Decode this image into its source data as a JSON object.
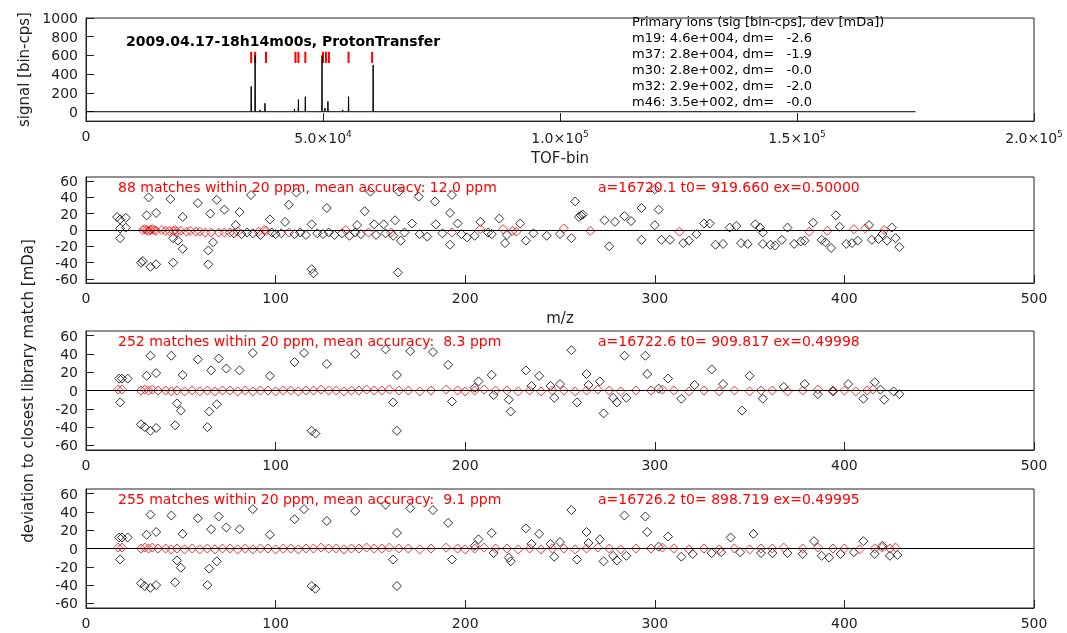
{
  "chart_data": [
    {
      "type": "line",
      "xlabel": "TOF-bin",
      "ylabel": "signal [bin-cps]",
      "xlim": [
        0,
        200000
      ],
      "xticks": [
        0,
        {
          "value": 50000,
          "label": "5.0×10$^{4}$"
        },
        {
          "value": 100000,
          "label": "1.0×10$^{5}$"
        },
        {
          "value": 150000,
          "label": "1.5×10$^{5}$"
        },
        {
          "value": 200000,
          "label": "2.0×10$^{5}$"
        }
      ],
      "ylim": [
        -100,
        1000
      ],
      "yticks": [
        0,
        200,
        400,
        600,
        800,
        1000
      ],
      "grid": false,
      "marker": "none",
      "annotations": [
        "2009.04.17-18h14m00s, ProtonTransfer",
        "Primary ions (sig [bin-cps], dev [mDa])",
        "m19: 4.6e+004, dm=   -2.6",
        "m37: 2.8e+004, dm=   -1.9",
        "m30: 2.8e+002, dm=   -0.0",
        "m32: 2.9e+002, dm=   -2.0",
        "m46: 3.5e+002, dm=   -0.0"
      ],
      "series": [
        {
          "color": "#000000",
          "x": [
            0,
            34800,
            34850,
            34900,
            35630,
            35680,
            35730,
            36670,
            36720,
            36770,
            37710,
            37760,
            37810,
            43930,
            43980,
            44030,
            44760,
            44810,
            44860,
            46220,
            46270,
            46320,
            49740,
            49790,
            49840,
            50360,
            50410,
            50460,
            50990,
            51040,
            51090,
            54100,
            54150,
            54200,
            55340,
            55390,
            55440,
            60530,
            60580,
            60630,
            175000
          ],
          "values": [
            0,
            0,
            270,
            0,
            0,
            600,
            0,
            0,
            20,
            0,
            0,
            90,
            0,
            0,
            30,
            0,
            0,
            130,
            0,
            0,
            160,
            0,
            0,
            600,
            0,
            0,
            40,
            0,
            0,
            110,
            0,
            0,
            20,
            0,
            0,
            160,
            0,
            0,
            500,
            0,
            0
          ]
        },
        {
          "type": "bar",
          "color": "#ff0000",
          "x": [
            34850,
            35680,
            37970,
            44190,
            44810,
            46270,
            50000,
            50620,
            51250,
            55390,
            60370
          ],
          "base": [
            520,
            520,
            520,
            520,
            520,
            520,
            520,
            520,
            520,
            520,
            520
          ],
          "values": [
            120,
            120,
            120,
            120,
            120,
            120,
            120,
            120,
            120,
            120,
            120
          ]
        }
      ]
    },
    {
      "type": "scatter",
      "xlabel": "m/z",
      "xlim": [
        0,
        500
      ],
      "xticks": [
        0,
        100,
        200,
        300,
        400,
        500
      ],
      "ylim": [
        -65,
        65
      ],
      "yticks": [
        -60,
        -40,
        -20,
        0,
        20,
        40,
        60
      ],
      "grid": false,
      "marker": "diamond",
      "annotations": [
        "88 matches within 20 ppm, mean accuracy: 12.0 ppm",
        "a=16720.1 t0= 919.660 ex=0.50000"
      ],
      "ref_lines": [
        {
          "axis": "y",
          "value": 0,
          "color": "#000000"
        }
      ],
      "series": [
        {
          "color": "#000000",
          "x": [
            16.4,
            18,
            21,
            18,
            21,
            18,
            29,
            30,
            33,
            32,
            34,
            37,
            37,
            44.5,
            46,
            46,
            48.5,
            51,
            51,
            59,
            64.5,
            64.5,
            65.5,
            67,
            69,
            73,
            81,
            79,
            87,
            97,
            105,
            107,
            111,
            119,
            119,
            120,
            127,
            143,
            147,
            150,
            152,
            157,
            163,
            165,
            164.5,
            166,
            172,
            175.5,
            184,
            184.5,
            192,
            193,
            192,
            196,
            201,
            208,
            214,
            218,
            221,
            229,
            232,
            78,
            82,
            85,
            88,
            92,
            98,
            100,
            103,
            110,
            113,
            116,
            122,
            125,
            128,
            131,
            135,
            139,
            142,
            145,
            153,
            158,
            162,
            168,
            176,
            180,
            188,
            198,
            205,
            212,
            222,
            236,
            243,
            250,
            256,
            258,
            261,
            260,
            262,
            273.5,
            276,
            279,
            284,
            287.5,
            293,
            300,
            302,
            300,
            293,
            303.5,
            308,
            315,
            318,
            322,
            326,
            329,
            332,
            336,
            339.5,
            343,
            345.5,
            349,
            353,
            355.5,
            357,
            357,
            361,
            363.5,
            367,
            370,
            373.5,
            377,
            379,
            383.5,
            388,
            390,
            393,
            395.5,
            397.5,
            401,
            404,
            407,
            413,
            414.5,
            418,
            420,
            422.5,
            425,
            427,
            429
          ],
          "values": [
            16,
            13,
            15,
            2,
            3,
            -10,
            -40,
            -38,
            40,
            18,
            -45,
            21,
            -42,
            38,
            -40,
            -10,
            -13,
            16,
            -23,
            33,
            -42,
            -25,
            20,
            -15,
            37,
            25,
            22,
            6,
            43,
            13,
            10,
            31,
            46,
            7,
            -48,
            -53,
            27,
            6,
            23,
            47,
            7,
            7,
            12,
            47,
            -52,
            -13,
            8,
            41,
            35,
            7,
            21,
            43,
            -18,
            8,
            -9,
            10,
            -5,
            14,
            -16,
            8,
            -13,
            -4,
            -5,
            -3,
            -4,
            -6,
            -3,
            -5,
            -4,
            -5,
            -3,
            -6,
            -4,
            -5,
            -3,
            -6,
            -4,
            -7,
            -3,
            -5,
            -6,
            -4,
            -7,
            -3,
            -5,
            -8,
            -4,
            -5,
            -7,
            -3,
            -6,
            -4,
            -7,
            -5,
            -10,
            35,
            18,
            16,
            19,
            12,
            -20,
            10,
            17,
            11,
            27,
            50,
            25,
            6,
            -12,
            -12,
            -12,
            -16,
            -13,
            -5,
            8,
            8,
            -18,
            -17,
            3,
            5,
            -16,
            -17,
            7,
            3,
            -3,
            -17,
            -18,
            -19,
            -12,
            3,
            -17,
            -14,
            -13,
            9,
            -12,
            -15,
            -22,
            18,
            4,
            -17,
            -16,
            -13,
            6,
            -12,
            -11,
            -5,
            -13,
            3,
            -10,
            -21
          ]
        },
        {
          "color": "#ff0000",
          "x": [
            30,
            31,
            32,
            33,
            34,
            35,
            36,
            37,
            40,
            42,
            44,
            46,
            47,
            48,
            50,
            53,
            55,
            58,
            60,
            63,
            66,
            70,
            73,
            76,
            80,
            91,
            94,
            95,
            107,
            137,
            149,
            161,
            193,
            208,
            220,
            225,
            227,
            252,
            266,
            313,
            381.5,
            391,
            405,
            411,
            421
          ],
          "values": [
            0,
            1,
            0,
            -1,
            0,
            1,
            0,
            -1,
            0,
            -1,
            -1,
            -1,
            0,
            -2,
            -1,
            -2,
            -1,
            -2,
            -2,
            -3,
            -3,
            -3,
            -3,
            -3,
            -2,
            -2,
            0,
            -1,
            -3,
            0,
            -3,
            -3,
            -3,
            1,
            1,
            -1,
            -2,
            2,
            -1,
            -2,
            -2,
            -1,
            1,
            2,
            0
          ]
        }
      ]
    },
    {
      "type": "scatter",
      "ylabel": "deviation to closest library match [mDa]",
      "xlim": [
        0,
        500
      ],
      "xticks": [
        0,
        100,
        200,
        300,
        400,
        500
      ],
      "ylim": [
        -65,
        65
      ],
      "yticks": [
        -60,
        -40,
        -20,
        0,
        20,
        40,
        60
      ],
      "grid": false,
      "marker": "diamond",
      "annotations": [
        "252 matches within 20 ppm, mean accuracy:  8.3 ppm",
        "a=16722.6 t0= 909.817 ex=0.49998"
      ],
      "ref_lines": [
        {
          "axis": "y",
          "value": 0,
          "color": "#000000"
        }
      ],
      "series": [
        {
          "color": "#000000",
          "x": [
            17.5,
            19,
            22,
            18,
            29,
            31,
            34,
            32,
            37,
            34,
            37,
            45,
            47,
            48,
            50,
            51,
            59,
            64,
            65,
            66,
            69,
            70,
            74,
            81,
            88,
            97,
            110,
            115,
            119,
            121,
            127,
            142,
            158,
            164,
            164,
            162,
            171,
            183,
            191,
            193,
            207,
            214,
            223,
            224,
            232,
            239,
            247,
            256,
            259,
            264,
            271,
            273,
            278,
            280,
            284,
            295,
            296,
            302,
            307,
            314,
            321,
            330,
            336,
            346,
            350,
            357,
            368,
            379,
            386,
            394,
            402,
            410,
            416,
            419,
            421,
            426,
            429,
            205,
            215,
            235,
            245,
            250,
            265,
            285
          ],
          "values": [
            13,
            13,
            13,
            -13,
            -37,
            -40,
            38,
            16,
            19,
            -44,
            -41,
            38,
            -38,
            -14,
            -22,
            17,
            34,
            -40,
            -23,
            22,
            -15,
            35,
            24,
            22,
            41,
            16,
            31,
            41,
            -44,
            -47,
            29,
            40,
            45,
            17,
            -44,
            -13,
            43,
            42,
            28,
            -12,
            10,
            17,
            -10,
            -23,
            22,
            16,
            -8,
            44,
            -13,
            18,
            10,
            -25,
            -8,
            -13,
            38,
            38,
            18,
            2,
            13,
            -9,
            6,
            23,
            7,
            -22,
            16,
            -9,
            4,
            7,
            -4,
            -1,
            7,
            -9,
            9,
            1,
            -10,
            -1,
            -4,
            3,
            -5,
            5,
            5,
            7,
            6,
            -8
          ]
        },
        {
          "color": "#ff0000",
          "x": [
            17,
            19,
            29,
            31,
            33,
            35,
            38,
            42,
            45,
            48,
            52,
            56,
            60,
            64,
            68,
            72,
            76,
            80,
            84,
            88,
            92,
            96,
            100,
            104,
            108,
            112,
            116,
            120,
            124,
            128,
            132,
            136,
            140,
            144,
            148,
            152,
            156,
            160,
            165,
            170,
            176,
            182,
            190,
            196,
            200,
            205,
            210,
            216,
            222,
            228,
            234,
            240,
            246,
            252,
            258,
            264,
            270,
            276,
            282,
            290,
            298,
            304,
            310,
            318,
            326,
            334,
            342,
            350,
            356,
            362,
            370,
            378,
            386,
            394,
            400,
            406,
            412,
            415
          ],
          "values": [
            1,
            1,
            0,
            1,
            0,
            1,
            0,
            0,
            -1,
            0,
            -1,
            0,
            -1,
            0,
            -1,
            0,
            0,
            -1,
            0,
            -1,
            0,
            0,
            -1,
            0,
            0,
            -1,
            0,
            0,
            1,
            0,
            0,
            -1,
            0,
            0,
            1,
            0,
            0,
            1,
            0,
            0,
            -1,
            0,
            1,
            0,
            -1,
            0,
            1,
            0,
            0,
            -1,
            0,
            -1,
            0,
            0,
            -1,
            0,
            1,
            0,
            -1,
            0,
            0,
            1,
            0,
            -1,
            0,
            -1,
            0,
            -1,
            0,
            0,
            -1,
            0,
            1,
            0,
            0,
            -1,
            0,
            1
          ]
        }
      ]
    },
    {
      "type": "scatter",
      "xlim": [
        0,
        500
      ],
      "xticks": [
        0,
        100,
        200,
        300,
        400,
        500
      ],
      "ylim": [
        -65,
        65
      ],
      "yticks": [
        -60,
        -40,
        -20,
        0,
        20,
        40,
        60
      ],
      "grid": false,
      "marker": "diamond",
      "annotations": [
        "255 matches within 20 ppm, mean accuracy:  9.1 ppm",
        "a=16726.2 t0= 898.719 ex=0.49995"
      ],
      "ref_lines": [
        {
          "axis": "y",
          "value": 0,
          "color": "#000000"
        }
      ],
      "series": [
        {
          "color": "#000000",
          "x": [
            17.5,
            19,
            22,
            18,
            29,
            31,
            34,
            32,
            37,
            34,
            37,
            45,
            47,
            48,
            50,
            51,
            59,
            64,
            65,
            66,
            69,
            70,
            74,
            81,
            88,
            97,
            110,
            115,
            119,
            121,
            127,
            142,
            158,
            164,
            164,
            162,
            171,
            183,
            191,
            193,
            207,
            214,
            223,
            224,
            232,
            239,
            247,
            256,
            259,
            264,
            271,
            273,
            278,
            280,
            284,
            295,
            296,
            302,
            307,
            314,
            320,
            330,
            335,
            340,
            345,
            352,
            356,
            362,
            370,
            378,
            384,
            388,
            392,
            398,
            405,
            410,
            416,
            420,
            424,
            428,
            205,
            215,
            235,
            245,
            250,
            265,
            285
          ],
          "values": [
            12,
            12,
            12,
            -12,
            -38,
            -41,
            37,
            15,
            18,
            -43,
            -40,
            36,
            -37,
            -13,
            -21,
            16,
            33,
            -40,
            -22,
            21,
            -14,
            35,
            23,
            21,
            43,
            15,
            32,
            43,
            -41,
            -44,
            30,
            41,
            48,
            17,
            -41,
            -12,
            44,
            42,
            28,
            -12,
            10,
            17,
            -10,
            -14,
            22,
            16,
            -9,
            42,
            -12,
            18,
            10,
            -14,
            -8,
            -13,
            36,
            35,
            18,
            2,
            13,
            -9,
            -6,
            -5,
            -4,
            12,
            -4,
            16,
            -5,
            -5,
            -5,
            -6,
            8,
            -8,
            -10,
            -6,
            -4,
            8,
            -6,
            3,
            -8,
            -7,
            3,
            -5,
            5,
            5,
            7,
            6,
            -8
          ]
        },
        {
          "color": "#ff0000",
          "x": [
            17,
            19,
            29,
            31,
            33,
            35,
            38,
            42,
            45,
            48,
            52,
            56,
            60,
            64,
            68,
            72,
            76,
            80,
            84,
            88,
            92,
            96,
            100,
            104,
            108,
            112,
            116,
            120,
            124,
            128,
            132,
            136,
            140,
            144,
            148,
            152,
            156,
            160,
            165,
            170,
            176,
            182,
            190,
            196,
            200,
            205,
            210,
            216,
            222,
            228,
            234,
            240,
            246,
            252,
            258,
            264,
            270,
            276,
            282,
            290,
            298,
            304,
            310,
            318,
            326,
            334,
            342,
            350,
            356,
            362,
            368,
            378,
            386,
            394,
            400,
            408,
            416,
            420,
            424,
            427
          ],
          "values": [
            1,
            1,
            0,
            1,
            0,
            1,
            0,
            0,
            -1,
            0,
            -1,
            0,
            -1,
            0,
            -1,
            0,
            0,
            -1,
            0,
            -1,
            0,
            0,
            -1,
            0,
            0,
            -1,
            0,
            0,
            1,
            0,
            0,
            -1,
            0,
            0,
            1,
            0,
            0,
            1,
            0,
            0,
            -1,
            0,
            1,
            0,
            -1,
            0,
            1,
            0,
            0,
            -1,
            0,
            -1,
            0,
            0,
            -1,
            0,
            1,
            0,
            -1,
            0,
            0,
            1,
            0,
            -1,
            0,
            -1,
            0,
            -1,
            0,
            0,
            1,
            0,
            1,
            0,
            0,
            -1,
            0,
            1,
            0,
            1
          ]
        }
      ]
    }
  ]
}
